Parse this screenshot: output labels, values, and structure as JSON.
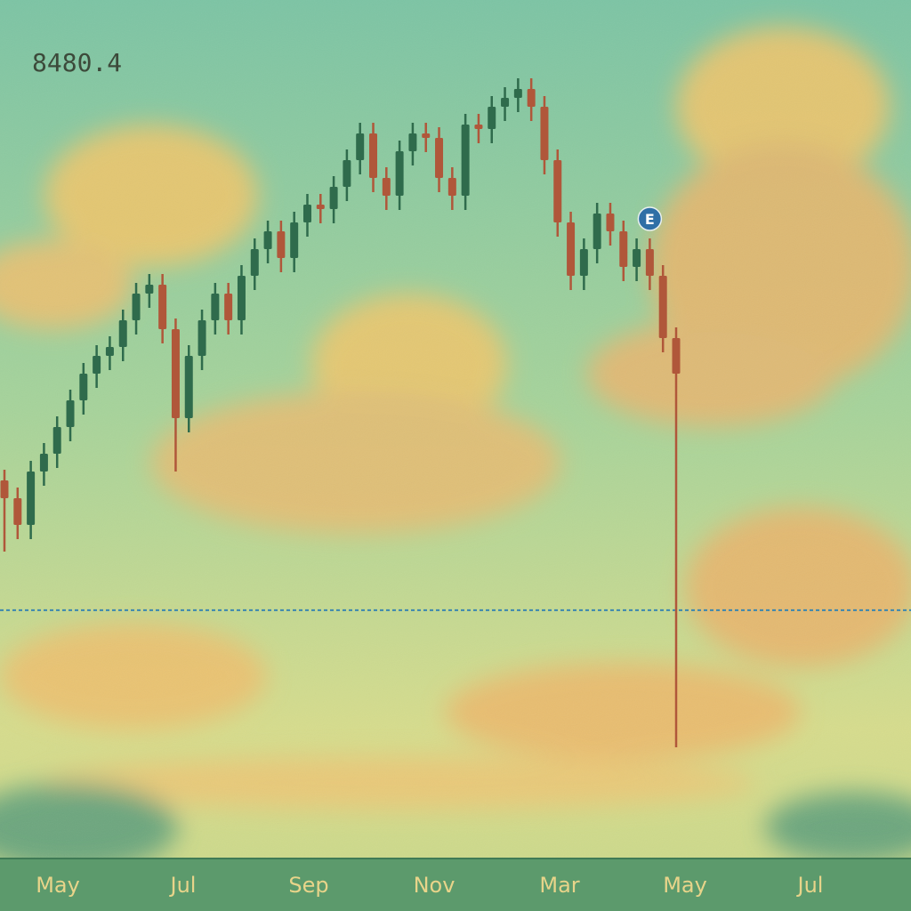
{
  "chart_data": {
    "type": "candlestick",
    "price": 8480.4,
    "x_labels": [
      "May",
      "Jul",
      "Sep",
      "Nov",
      "Mar",
      "May",
      "Jul"
    ],
    "open": [
      9210,
      9110,
      8960,
      9260,
      9360,
      9510,
      9660,
      9810,
      9910,
      9960,
      10110,
      10260,
      10310,
      10060,
      9560,
      9910,
      10110,
      10260,
      10110,
      10360,
      10510,
      10610,
      10460,
      10660,
      10760,
      10735,
      10860,
      11010,
      11160,
      10910,
      10810,
      11060,
      11160,
      11135,
      10910,
      10810,
      11210,
      11185,
      11310,
      11360,
      11410,
      11310,
      11010,
      10660,
      10360,
      10510,
      10710,
      10610,
      10410,
      10510,
      10360,
      10010
    ],
    "high": [
      9270,
      9170,
      9320,
      9420,
      9570,
      9720,
      9870,
      9970,
      10020,
      10170,
      10320,
      10370,
      10370,
      10120,
      9970,
      10170,
      10320,
      10320,
      10420,
      10570,
      10670,
      10670,
      10720,
      10820,
      10820,
      10920,
      11070,
      11220,
      11220,
      10970,
      11120,
      11220,
      11220,
      11195,
      10970,
      11270,
      11270,
      11370,
      11420,
      11470,
      11470,
      11370,
      11070,
      10720,
      10570,
      10770,
      10770,
      10670,
      10570,
      10570,
      10420,
      10070
    ],
    "low": [
      8810,
      8880,
      8880,
      9180,
      9280,
      9430,
      9580,
      9730,
      9830,
      9880,
      10030,
      10180,
      9980,
      9260,
      9480,
      9830,
      10030,
      10030,
      10030,
      10280,
      10430,
      10380,
      10380,
      10580,
      10655,
      10655,
      10780,
      10930,
      10830,
      10730,
      10730,
      10980,
      11055,
      10830,
      10730,
      10730,
      11105,
      11105,
      11230,
      11280,
      11230,
      10930,
      10580,
      10280,
      10280,
      10430,
      10530,
      10330,
      10330,
      10280,
      9930,
      7710
    ],
    "close": [
      9110,
      8960,
      9260,
      9360,
      9510,
      9660,
      9810,
      9910,
      9960,
      10110,
      10260,
      10310,
      10060,
      9560,
      9910,
      10110,
      10260,
      10110,
      10360,
      10510,
      10610,
      10460,
      10660,
      10760,
      10735,
      10860,
      11010,
      11160,
      10910,
      10810,
      11060,
      11160,
      11135,
      10910,
      10810,
      11210,
      11185,
      11310,
      11360,
      11410,
      11310,
      11010,
      10660,
      10360,
      10510,
      10710,
      10610,
      10410,
      10510,
      10360,
      10010,
      9810
    ],
    "up_color": "#2f6b4c",
    "down_color": "#b0573a",
    "ylim": [
      7110,
      11910
    ],
    "events": [
      {
        "candle": 49,
        "label": "E"
      }
    ]
  }
}
